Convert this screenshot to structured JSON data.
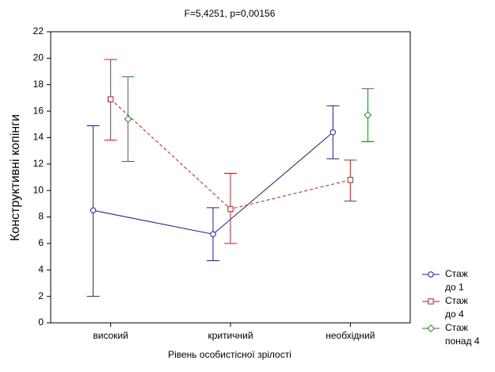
{
  "chart_data": {
    "type": "means-plot",
    "title": "F=5,4251, p=0,00156",
    "x_label": "Рівень особистісної зрілості",
    "y_label": "Конструктивні копінги",
    "categories": [
      "високий",
      "критичний",
      "необхідний"
    ],
    "ylim": [
      0,
      22
    ],
    "yticks": [
      0,
      2,
      4,
      6,
      8,
      10,
      12,
      14,
      16,
      18,
      20,
      22
    ],
    "series": [
      {
        "name": "Стаж до 1",
        "color": "#1c1cb0",
        "line_style": "solid",
        "marker": "circle",
        "values": [
          8.5,
          6.7,
          14.4
        ],
        "lower": [
          2.0,
          4.7,
          12.4
        ],
        "upper": [
          14.9,
          8.7,
          16.4
        ]
      },
      {
        "name": "Стаж до 4",
        "color": "#cc1c1c",
        "line_style": "dashed",
        "marker": "square",
        "values": [
          16.9,
          8.6,
          10.8
        ],
        "lower": [
          13.8,
          6.0,
          9.2
        ],
        "upper": [
          19.9,
          11.3,
          12.3
        ]
      },
      {
        "name": "Стаж понад 4",
        "color": "#1c8a1c",
        "line_style": "none",
        "marker": "diamond",
        "values": [
          15.4,
          null,
          15.7
        ],
        "lower": [
          12.2,
          null,
          13.7
        ],
        "upper": [
          18.6,
          null,
          17.7
        ]
      }
    ]
  }
}
